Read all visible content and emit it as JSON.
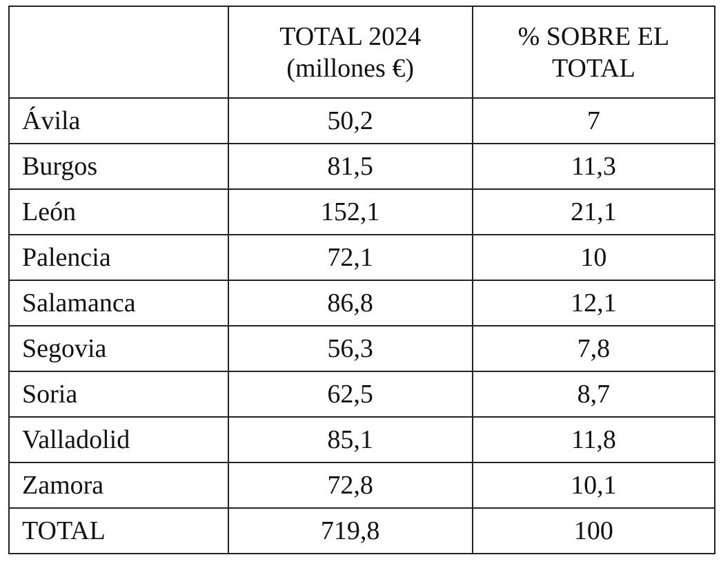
{
  "table": {
    "columns": [
      "TOTAL 2024 (millones €)",
      "% SOBRE EL TOTAL"
    ],
    "rows": [
      [
        "Ávila",
        "50,2",
        "7"
      ],
      [
        "Burgos",
        "81,5",
        "11,3"
      ],
      [
        "León",
        "152,1",
        "21,1"
      ],
      [
        "Palencia",
        "72,1",
        "10"
      ],
      [
        "Salamanca",
        "86,8",
        "12,1"
      ],
      [
        "Segovia",
        "56,3",
        "7,8"
      ],
      [
        "Soria",
        "62,5",
        "8,7"
      ],
      [
        "Valladolid",
        "85,1",
        "11,8"
      ],
      [
        "Zamora",
        "72,8",
        "10,1"
      ],
      [
        "TOTAL",
        "719,8",
        "100"
      ]
    ]
  }
}
